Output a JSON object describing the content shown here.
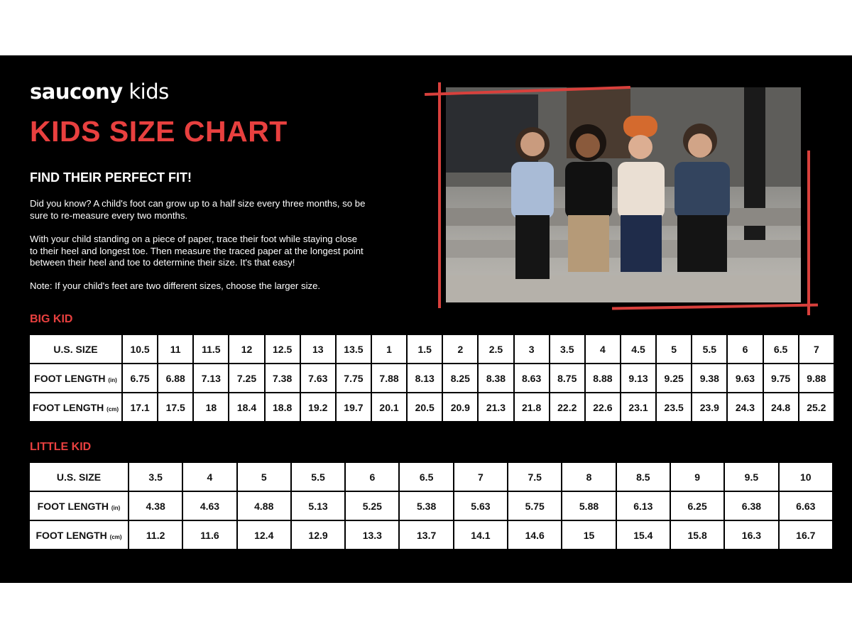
{
  "brand": {
    "name_bold": "saucony",
    "name_light": " kids"
  },
  "title": "KIDS SIZE CHART",
  "subtitle": "FIND THEIR PERFECT FIT!",
  "paragraphs": [
    "Did you know? A child's foot can grow up to a half size every three months, so be sure to re-measure every two months.",
    "With your child standing on a piece of paper, trace their foot while staying close to their heel and longest toe. Then measure the traced paper at the longest point between their heel and toe to determine their size. It's that easy!",
    "Note: If your child's feet are two different sizes, choose the larger size."
  ],
  "colors": {
    "accent": "#e8403f",
    "background": "#000000"
  },
  "big_kid": {
    "label": "BIG KID",
    "rows": [
      {
        "header": "U.S. SIZE",
        "unit": "",
        "values": [
          "10.5",
          "11",
          "11.5",
          "12",
          "12.5",
          "13",
          "13.5",
          "1",
          "1.5",
          "2",
          "2.5",
          "3",
          "3.5",
          "4",
          "4.5",
          "5",
          "5.5",
          "6",
          "6.5",
          "7"
        ]
      },
      {
        "header": "FOOT LENGTH",
        "unit": "(in)",
        "values": [
          "6.75",
          "6.88",
          "7.13",
          "7.25",
          "7.38",
          "7.63",
          "7.75",
          "7.88",
          "8.13",
          "8.25",
          "8.38",
          "8.63",
          "8.75",
          "8.88",
          "9.13",
          "9.25",
          "9.38",
          "9.63",
          "9.75",
          "9.88"
        ]
      },
      {
        "header": "FOOT LENGTH",
        "unit": "(cm)",
        "values": [
          "17.1",
          "17.5",
          "18",
          "18.4",
          "18.8",
          "19.2",
          "19.7",
          "20.1",
          "20.5",
          "20.9",
          "21.3",
          "21.8",
          "22.2",
          "22.6",
          "23.1",
          "23.5",
          "23.9",
          "24.3",
          "24.8",
          "25.2"
        ]
      }
    ]
  },
  "little_kid": {
    "label": "LITTLE KID",
    "rows": [
      {
        "header": "U.S. SIZE",
        "unit": "",
        "values": [
          "3.5",
          "4",
          "5",
          "5.5",
          "6",
          "6.5",
          "7",
          "7.5",
          "8",
          "8.5",
          "9",
          "9.5",
          "10"
        ]
      },
      {
        "header": "FOOT LENGTH",
        "unit": "(in)",
        "values": [
          "4.38",
          "4.63",
          "4.88",
          "5.13",
          "5.25",
          "5.38",
          "5.63",
          "5.75",
          "5.88",
          "6.13",
          "6.25",
          "6.38",
          "6.63"
        ]
      },
      {
        "header": "FOOT LENGTH",
        "unit": "(cm)",
        "values": [
          "11.2",
          "11.6",
          "12.4",
          "12.9",
          "13.3",
          "13.7",
          "14.1",
          "14.6",
          "15",
          "15.4",
          "15.8",
          "16.3",
          "16.7"
        ]
      }
    ]
  }
}
